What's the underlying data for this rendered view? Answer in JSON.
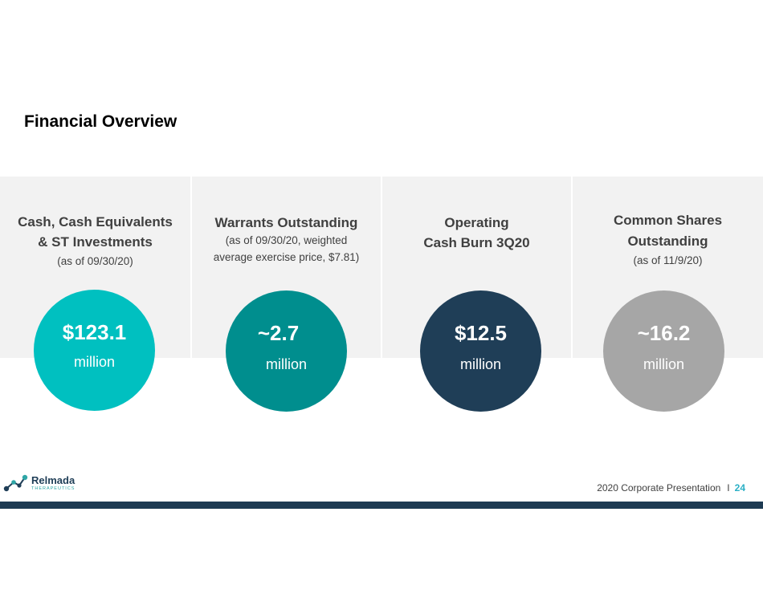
{
  "slide": {
    "title": "Financial Overview"
  },
  "metrics": [
    {
      "heading_line1": "Cash, Cash Equivalents",
      "heading_line2": "& ST Investments",
      "sub_line1": "(as of 09/30/20)",
      "sub_line2": "",
      "value": "$123.1",
      "unit": "million",
      "color": "#00c0c0"
    },
    {
      "heading_line1": "Warrants Outstanding",
      "heading_line2": "",
      "sub_line1": "(as of 09/30/20, weighted",
      "sub_line2": "average exercise price, $7.81)",
      "value": "~2.7",
      "unit": "million",
      "color": "#008e8e"
    },
    {
      "heading_line1": "Operating",
      "heading_line2": "Cash Burn 3Q20",
      "sub_line1": "",
      "sub_line2": "",
      "value": "$12.5",
      "unit": "million",
      "color": "#1f3e57"
    },
    {
      "heading_line1": "Common Shares",
      "heading_line2": "Outstanding",
      "sub_line1": "(as of 11/9/20)",
      "sub_line2": "",
      "value": "~16.2",
      "unit": "million",
      "color": "#a6a6a6"
    }
  ],
  "footer": {
    "logo_name": "Relmada",
    "logo_tagline": "THERAPEUTICS",
    "logo_icon": "molecule-icon",
    "presentation": "2020 Corporate Presentation",
    "separator": "I",
    "page_number": "24"
  },
  "colors": {
    "panel_background": "#f2f2f2",
    "bottom_bar": "#1d3a52",
    "page_number": "#2bb0c6"
  }
}
